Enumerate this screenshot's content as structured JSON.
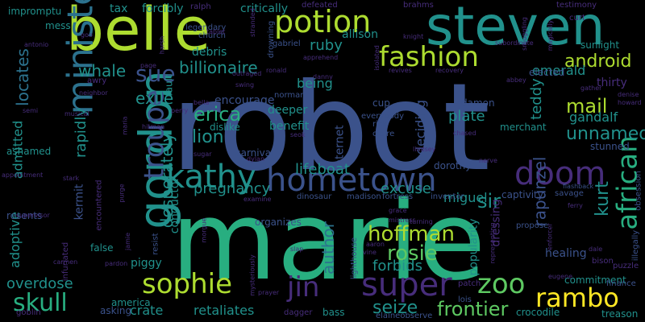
{
  "palette": {
    "background": "#000000",
    "purple_dark": "#440154",
    "purple": "#472d7b",
    "indigo": "#3b528b",
    "blue": "#2c728e",
    "teal": "#21918c",
    "green": "#28ae80",
    "lime_green": "#5ec962",
    "yellow_green": "#addc30",
    "yellow": "#fde725"
  },
  "words": [
    {
      "id": "robot",
      "text": "robot"
    },
    {
      "id": "marie",
      "text": "marie"
    },
    {
      "id": "belle",
      "text": "belle"
    },
    {
      "id": "steven",
      "text": "steven"
    },
    {
      "id": "minister",
      "text": "minister"
    },
    {
      "id": "gordon",
      "text": "gordon"
    },
    {
      "id": "potion",
      "text": "potion"
    },
    {
      "id": "fashion",
      "text": "fashion"
    },
    {
      "id": "kathy",
      "text": "kathy"
    },
    {
      "id": "hometown",
      "text": "hometown"
    },
    {
      "id": "doom",
      "text": "doom"
    },
    {
      "id": "sue",
      "text": "sue"
    },
    {
      "id": "troupe",
      "text": "troupe"
    },
    {
      "id": "african",
      "text": "african"
    },
    {
      "id": "sophie",
      "text": "sophie"
    },
    {
      "id": "jin",
      "text": "jin"
    },
    {
      "id": "super",
      "text": "super"
    },
    {
      "id": "zoo",
      "text": "zoo"
    },
    {
      "id": "rambo",
      "text": "rambo"
    },
    {
      "id": "skull",
      "text": "skull"
    },
    {
      "id": "android",
      "text": "android"
    },
    {
      "id": "mail",
      "text": "mail"
    },
    {
      "id": "erica",
      "text": "erica"
    },
    {
      "id": "lion",
      "text": "lion"
    },
    {
      "id": "unnamed",
      "text": "unnamed"
    },
    {
      "id": "hoffman",
      "text": "hoffman"
    },
    {
      "id": "rosie",
      "text": "rosie"
    },
    {
      "id": "frontier",
      "text": "frontier"
    },
    {
      "id": "seize",
      "text": "seize"
    },
    {
      "id": "overdose",
      "text": "overdose"
    },
    {
      "id": "whale",
      "text": "whale"
    },
    {
      "id": "exile",
      "text": "exile"
    },
    {
      "id": "billionaire",
      "text": "billionaire"
    },
    {
      "id": "locates",
      "text": "locates"
    },
    {
      "id": "rapidly",
      "text": "rapidly"
    },
    {
      "id": "desperately",
      "text": "desperately"
    },
    {
      "id": "pregnancy",
      "text": "pregnancy"
    },
    {
      "id": "lifeboat",
      "text": "lifeboat"
    },
    {
      "id": "excuse",
      "text": "excuse"
    },
    {
      "id": "miguel",
      "text": "miguel"
    },
    {
      "id": "sir",
      "text": "sir"
    },
    {
      "id": "kurt",
      "text": "kurt"
    },
    {
      "id": "rapunzel",
      "text": "rapunzel"
    },
    {
      "id": "author",
      "text": "author"
    },
    {
      "id": "forbids",
      "text": "forbids"
    },
    {
      "id": "crate",
      "text": "crate"
    },
    {
      "id": "retaliates",
      "text": "retaliates"
    },
    {
      "id": "ruby",
      "text": "ruby"
    },
    {
      "id": "emerald",
      "text": "emerald"
    },
    {
      "id": "being",
      "text": "being"
    },
    {
      "id": "plate",
      "text": "plate"
    },
    {
      "id": "teddy",
      "text": "teddy"
    },
    {
      "id": "gandalf",
      "text": "gandalf"
    },
    {
      "id": "thirty",
      "text": "thirty"
    },
    {
      "id": "admitted",
      "text": "admitted"
    },
    {
      "id": "kermit",
      "text": "kermit"
    },
    {
      "id": "adoptive",
      "text": "adoptive"
    },
    {
      "id": "conductor",
      "text": "conductor"
    },
    {
      "id": "internet",
      "text": "internet"
    },
    {
      "id": "deciding",
      "text": "deciding"
    },
    {
      "id": "dressing",
      "text": "dressing"
    },
    {
      "id": "healing",
      "text": "healing"
    },
    {
      "id": "commitment",
      "text": "commitment"
    },
    {
      "id": "merchant",
      "text": "merchant"
    },
    {
      "id": "popularity",
      "text": "popularity"
    },
    {
      "id": "piggy",
      "text": "piggy"
    },
    {
      "id": "encourage",
      "text": "encourage"
    },
    {
      "id": "deeper",
      "text": "deeper"
    },
    {
      "id": "dislike",
      "text": "dislike"
    },
    {
      "id": "benefit",
      "text": "benefit"
    },
    {
      "id": "allison",
      "text": "allison"
    },
    {
      "id": "debris",
      "text": "debris"
    },
    {
      "id": "tax",
      "text": "tax"
    },
    {
      "id": "forcibly",
      "text": "forcibly"
    },
    {
      "id": "critically",
      "text": "critically"
    },
    {
      "id": "impromptu",
      "text": "impromptu"
    },
    {
      "id": "mess",
      "text": "mess"
    },
    {
      "id": "sunlight",
      "text": "sunlight"
    },
    {
      "id": "ashamed",
      "text": "ashamed"
    },
    {
      "id": "america",
      "text": "america"
    },
    {
      "id": "treason",
      "text": "treason"
    },
    {
      "id": "crocodile",
      "text": "crocodile"
    },
    {
      "id": "bass",
      "text": "bass"
    },
    {
      "id": "cup",
      "text": "cup"
    },
    {
      "id": "damon",
      "text": "damon"
    },
    {
      "id": "fault",
      "text": "fault"
    },
    {
      "id": "elected",
      "text": "elected"
    },
    {
      "id": "carnival",
      "text": "carnival"
    },
    {
      "id": "norman",
      "text": "norman"
    },
    {
      "id": "captivity",
      "text": "captivity"
    },
    {
      "id": "stunned",
      "text": "stunned"
    },
    {
      "id": "rick",
      "text": "rick"
    },
    {
      "id": "claire",
      "text": "claire"
    },
    {
      "id": "everybody",
      "text": "everybody"
    },
    {
      "id": "dorothy",
      "text": "dorothy"
    },
    {
      "id": "organizes",
      "text": "organizes"
    },
    {
      "id": "dinosaur",
      "text": "dinosaur"
    },
    {
      "id": "madison",
      "text": "madison"
    },
    {
      "id": "fortress",
      "text": "fortress"
    },
    {
      "id": "inventor",
      "text": "inventor"
    },
    {
      "id": "resents",
      "text": "resents"
    },
    {
      "id": "false",
      "text": "false"
    },
    {
      "id": "goblin",
      "text": "goblin"
    },
    {
      "id": "asking",
      "text": "asking"
    },
    {
      "id": "dagger",
      "text": "dagger"
    },
    {
      "id": "elaineobserve",
      "text": "elaineobserve"
    },
    {
      "id": "lois",
      "text": "lois"
    },
    {
      "id": "finance",
      "text": "finance"
    },
    {
      "id": "patch",
      "text": "patch"
    },
    {
      "id": "puzzle",
      "text": "puzzle"
    },
    {
      "id": "bison",
      "text": "bison"
    },
    {
      "id": "illegally",
      "text": "illegally"
    },
    {
      "id": "propose",
      "text": "propose"
    },
    {
      "id": "savage",
      "text": "savage"
    },
    {
      "id": "obsession",
      "text": "obsession"
    },
    {
      "id": "flashback",
      "text": "flashback"
    },
    {
      "id": "howard",
      "text": "howard"
    },
    {
      "id": "gather",
      "text": "gather"
    },
    {
      "id": "denise",
      "text": "denise"
    },
    {
      "id": "abbey",
      "text": "abbey"
    },
    {
      "id": "recovery",
      "text": "recovery"
    },
    {
      "id": "revives",
      "text": "revives"
    },
    {
      "id": "danny",
      "text": "danny"
    },
    {
      "id": "ronald",
      "text": "ronald"
    },
    {
      "id": "gabriel",
      "text": "gabriel"
    },
    {
      "id": "apprehend",
      "text": "apprehend"
    },
    {
      "id": "defeated",
      "text": "defeated"
    },
    {
      "id": "brahms",
      "text": "brahms"
    },
    {
      "id": "testimony",
      "text": "testimony"
    },
    {
      "id": "curt",
      "text": "curt"
    },
    {
      "id": "subordinate",
      "text": "subordinate"
    },
    {
      "id": "knight",
      "text": "knight"
    },
    {
      "id": "isolated",
      "text": "isolated"
    },
    {
      "id": "stranded",
      "text": "stranded"
    },
    {
      "id": "drowning",
      "text": "drowning"
    },
    {
      "id": "legendary",
      "text": "legendary"
    },
    {
      "id": "church",
      "text": "church"
    },
    {
      "id": "ralph",
      "text": "ralph"
    },
    {
      "id": "harsh",
      "text": "harsh"
    },
    {
      "id": "page",
      "text": "page"
    },
    {
      "id": "outraged",
      "text": "outraged"
    },
    {
      "id": "antonio",
      "text": "antonio"
    },
    {
      "id": "goo",
      "text": "goo"
    },
    {
      "id": "awry",
      "text": "awry"
    },
    {
      "id": "semi",
      "text": "semi"
    },
    {
      "id": "perry",
      "text": "perry"
    },
    {
      "id": "bella",
      "text": "bella"
    },
    {
      "id": "hitman",
      "text": "hitman"
    },
    {
      "id": "maria",
      "text": "maria"
    },
    {
      "id": "stark",
      "text": "stark"
    },
    {
      "id": "purge",
      "text": "purge"
    },
    {
      "id": "encountered",
      "text": "encountered"
    },
    {
      "id": "appointment",
      "text": "appointment"
    },
    {
      "id": "dylan",
      "text": "dylan"
    },
    {
      "id": "sugar",
      "text": "sugar"
    },
    {
      "id": "seok",
      "text": "seok"
    },
    {
      "id": "swing",
      "text": "swing"
    },
    {
      "id": "examine",
      "text": "examine"
    },
    {
      "id": "grace",
      "text": "grace"
    },
    {
      "id": "mistress",
      "text": "mistress"
    },
    {
      "id": "turning",
      "text": "turning"
    },
    {
      "id": "aaron",
      "text": "aaron"
    },
    {
      "id": "vine",
      "text": "vine"
    },
    {
      "id": "slap",
      "text": "slap"
    },
    {
      "id": "lighthouse",
      "text": "lighthouse"
    },
    {
      "id": "mysteriously",
      "text": "mysteriously"
    },
    {
      "id": "prayer",
      "text": "prayer"
    },
    {
      "id": "morgue",
      "text": "morgue"
    },
    {
      "id": "infuriated",
      "text": "infuriated"
    },
    {
      "id": "pardon",
      "text": "pardon"
    },
    {
      "id": "carmen",
      "text": "carmen"
    },
    {
      "id": "supervisor",
      "text": "supervisor"
    },
    {
      "id": "tablet",
      "text": "tablet"
    },
    {
      "id": "jamie",
      "text": "jamie"
    },
    {
      "id": "resist",
      "text": "resist"
    },
    {
      "id": "representing",
      "text": "representing"
    },
    {
      "id": "eugene",
      "text": "eugene"
    },
    {
      "id": "enforcer",
      "text": "enforcer"
    },
    {
      "id": "dale",
      "text": "dale"
    },
    {
      "id": "ferry",
      "text": "ferry"
    },
    {
      "id": "chased",
      "text": "chased"
    },
    {
      "id": "lindsey",
      "text": "lindsey"
    },
    {
      "id": "nerve",
      "text": "nerve"
    },
    {
      "id": "magically",
      "text": "magically"
    },
    {
      "id": "smuggling",
      "text": "smuggling"
    },
    {
      "id": "neighbor",
      "text": "neighbor"
    },
    {
      "id": "musical",
      "text": "musical"
    }
  ]
}
